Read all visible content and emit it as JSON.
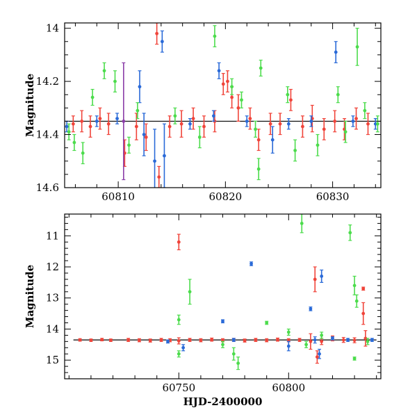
{
  "chart_data": [
    {
      "type": "scatter",
      "title": "",
      "xlabel": "",
      "ylabel": "Magnitude",
      "xlim": [
        60805,
        60834.5
      ],
      "ylim": [
        14.6,
        13.98
      ],
      "y_inverted": true,
      "xticks": [
        60810,
        60820,
        60830
      ],
      "yticks": [
        14,
        14.2,
        14.4,
        14.6
      ],
      "grid": false,
      "model_line": {
        "x": [
          60805,
          60834.5
        ],
        "y": [
          14.35,
          14.35
        ],
        "color": "#000000"
      },
      "series": [
        {
          "color": "#f0443a",
          "points": [
            {
              "x": 60805.8,
              "y": 14.36,
              "err": 0.03
            },
            {
              "x": 60806.6,
              "y": 14.35,
              "err": 0.04
            },
            {
              "x": 60807.4,
              "y": 14.37,
              "err": 0.04
            },
            {
              "x": 60808.3,
              "y": 14.34,
              "err": 0.04
            },
            {
              "x": 60809.1,
              "y": 14.36,
              "err": 0.04
            },
            {
              "x": 60810.6,
              "y": 14.47,
              "err": 0.05
            },
            {
              "x": 60811.7,
              "y": 14.37,
              "err": 0.05
            },
            {
              "x": 60812.6,
              "y": 14.41,
              "err": 0.05
            },
            {
              "x": 60813.6,
              "y": 14.02,
              "err": 0.04
            },
            {
              "x": 60813.8,
              "y": 14.56,
              "err": 0.04
            },
            {
              "x": 60814.8,
              "y": 14.37,
              "err": 0.04
            },
            {
              "x": 60815.9,
              "y": 14.36,
              "err": 0.05
            },
            {
              "x": 60817.0,
              "y": 14.34,
              "err": 0.04
            },
            {
              "x": 60818.0,
              "y": 14.37,
              "err": 0.04
            },
            {
              "x": 60819.0,
              "y": 14.35,
              "err": 0.04
            },
            {
              "x": 60819.8,
              "y": 14.21,
              "err": 0.04
            },
            {
              "x": 60820.2,
              "y": 14.2,
              "err": 0.04
            },
            {
              "x": 60820.6,
              "y": 14.26,
              "err": 0.04
            },
            {
              "x": 60821.2,
              "y": 14.3,
              "err": 0.05
            },
            {
              "x": 60822.3,
              "y": 14.34,
              "err": 0.04
            },
            {
              "x": 60823.1,
              "y": 14.42,
              "err": 0.04
            },
            {
              "x": 60824.2,
              "y": 14.36,
              "err": 0.04
            },
            {
              "x": 60825.1,
              "y": 14.36,
              "err": 0.04
            },
            {
              "x": 60826.1,
              "y": 14.27,
              "err": 0.04
            },
            {
              "x": 60827.2,
              "y": 14.37,
              "err": 0.04
            },
            {
              "x": 60828.1,
              "y": 14.34,
              "err": 0.05
            },
            {
              "x": 60829.2,
              "y": 14.38,
              "err": 0.04
            },
            {
              "x": 60830.2,
              "y": 14.35,
              "err": 0.04
            },
            {
              "x": 60831.1,
              "y": 14.38,
              "err": 0.04
            },
            {
              "x": 60832.2,
              "y": 14.34,
              "err": 0.04
            },
            {
              "x": 60833.3,
              "y": 14.36,
              "err": 0.04
            }
          ]
        },
        {
          "color": "#2a6ad8",
          "points": [
            {
              "x": 60805.2,
              "y": 14.37,
              "err": 0.02
            },
            {
              "x": 60808.0,
              "y": 14.35,
              "err": 0.02
            },
            {
              "x": 60809.9,
              "y": 14.34,
              "err": 0.02
            },
            {
              "x": 60812.0,
              "y": 14.22,
              "err": 0.06
            },
            {
              "x": 60812.4,
              "y": 14.4,
              "err": 0.08
            },
            {
              "x": 60813.4,
              "y": 14.5,
              "err": 0.12
            },
            {
              "x": 60814.1,
              "y": 14.05,
              "err": 0.04
            },
            {
              "x": 60814.3,
              "y": 14.48,
              "err": 0.12
            },
            {
              "x": 60816.7,
              "y": 14.36,
              "err": 0.02
            },
            {
              "x": 60818.9,
              "y": 14.33,
              "err": 0.02
            },
            {
              "x": 60819.4,
              "y": 14.16,
              "err": 0.03
            },
            {
              "x": 60822.0,
              "y": 14.35,
              "err": 0.02
            },
            {
              "x": 60824.4,
              "y": 14.42,
              "err": 0.05
            },
            {
              "x": 60825.9,
              "y": 14.36,
              "err": 0.02
            },
            {
              "x": 60828.0,
              "y": 14.35,
              "err": 0.02
            },
            {
              "x": 60830.3,
              "y": 14.09,
              "err": 0.04
            },
            {
              "x": 60831.9,
              "y": 14.35,
              "err": 0.02
            },
            {
              "x": 60834.0,
              "y": 14.36,
              "err": 0.02
            }
          ]
        },
        {
          "color": "#4cdc4c",
          "points": [
            {
              "x": 60805.4,
              "y": 14.39,
              "err": 0.03
            },
            {
              "x": 60805.9,
              "y": 14.43,
              "err": 0.03
            },
            {
              "x": 60806.7,
              "y": 14.47,
              "err": 0.04
            },
            {
              "x": 60807.6,
              "y": 14.26,
              "err": 0.03
            },
            {
              "x": 60808.7,
              "y": 14.16,
              "err": 0.03
            },
            {
              "x": 60809.7,
              "y": 14.2,
              "err": 0.04
            },
            {
              "x": 60811.0,
              "y": 14.44,
              "err": 0.03
            },
            {
              "x": 60811.8,
              "y": 14.31,
              "err": 0.03
            },
            {
              "x": 60815.3,
              "y": 14.33,
              "err": 0.03
            },
            {
              "x": 60817.6,
              "y": 14.41,
              "err": 0.04
            },
            {
              "x": 60819.0,
              "y": 14.03,
              "err": 0.04
            },
            {
              "x": 60820.6,
              "y": 14.22,
              "err": 0.03
            },
            {
              "x": 60821.5,
              "y": 14.27,
              "err": 0.03
            },
            {
              "x": 60822.8,
              "y": 14.38,
              "err": 0.03
            },
            {
              "x": 60823.1,
              "y": 14.53,
              "err": 0.04
            },
            {
              "x": 60823.3,
              "y": 14.15,
              "err": 0.03
            },
            {
              "x": 60825.8,
              "y": 14.25,
              "err": 0.03
            },
            {
              "x": 60826.5,
              "y": 14.46,
              "err": 0.04
            },
            {
              "x": 60828.6,
              "y": 14.44,
              "err": 0.04
            },
            {
              "x": 60830.5,
              "y": 14.25,
              "err": 0.03
            },
            {
              "x": 60831.2,
              "y": 14.39,
              "err": 0.04
            },
            {
              "x": 60832.3,
              "y": 14.07,
              "err": 0.07
            },
            {
              "x": 60833.0,
              "y": 14.31,
              "err": 0.03
            },
            {
              "x": 60834.2,
              "y": 14.36,
              "err": 0.03
            }
          ]
        },
        {
          "color": "#8a3da8",
          "points": [
            {
              "x": 60810.5,
              "y": 14.35,
              "err": 0.22
            }
          ]
        }
      ]
    },
    {
      "type": "scatter",
      "title": "",
      "xlabel": "HJD-2400000",
      "ylabel": "Magnitude",
      "xlim": [
        60698,
        60842
      ],
      "ylim": [
        15.6,
        10.3
      ],
      "y_inverted": true,
      "xticks": [
        60750,
        60800
      ],
      "yticks": [
        11,
        12,
        13,
        14,
        15
      ],
      "grid": false,
      "model_line": {
        "x": [
          60702,
          60840
        ],
        "y": [
          14.35,
          14.35
        ],
        "color": "#000000"
      },
      "series": [
        {
          "color": "#f0443a",
          "points": [
            {
              "x": 60705,
              "y": 14.35,
              "err": 0.04
            },
            {
              "x": 60710,
              "y": 14.36,
              "err": 0.04
            },
            {
              "x": 60715,
              "y": 14.34,
              "err": 0.04
            },
            {
              "x": 60719,
              "y": 14.36,
              "err": 0.04
            },
            {
              "x": 60727,
              "y": 14.35,
              "err": 0.05
            },
            {
              "x": 60732,
              "y": 14.36,
              "err": 0.05
            },
            {
              "x": 60737,
              "y": 14.37,
              "err": 0.05
            },
            {
              "x": 60742,
              "y": 14.35,
              "err": 0.05
            },
            {
              "x": 60746,
              "y": 14.36,
              "err": 0.05
            },
            {
              "x": 60750,
              "y": 11.2,
              "err": 0.25
            },
            {
              "x": 60750,
              "y": 14.38,
              "err": 0.1
            },
            {
              "x": 60755,
              "y": 14.35,
              "err": 0.05
            },
            {
              "x": 60760,
              "y": 14.36,
              "err": 0.05
            },
            {
              "x": 60765,
              "y": 14.34,
              "err": 0.05
            },
            {
              "x": 60770,
              "y": 14.36,
              "err": 0.05
            },
            {
              "x": 60775,
              "y": 14.35,
              "err": 0.05
            },
            {
              "x": 60780,
              "y": 14.37,
              "err": 0.05
            },
            {
              "x": 60785,
              "y": 14.35,
              "err": 0.05
            },
            {
              "x": 60790,
              "y": 14.36,
              "err": 0.05
            },
            {
              "x": 60795,
              "y": 14.34,
              "err": 0.05
            },
            {
              "x": 60800,
              "y": 14.36,
              "err": 0.05
            },
            {
              "x": 60805,
              "y": 14.35,
              "err": 0.05
            },
            {
              "x": 60810,
              "y": 14.4,
              "err": 0.25
            },
            {
              "x": 60812,
              "y": 12.4,
              "err": 0.4
            },
            {
              "x": 60813,
              "y": 14.9,
              "err": 0.2
            },
            {
              "x": 60815,
              "y": 14.4,
              "err": 0.1
            },
            {
              "x": 60820,
              "y": 14.3,
              "err": 0.08
            },
            {
              "x": 60825,
              "y": 14.35,
              "err": 0.08
            },
            {
              "x": 60830,
              "y": 14.36,
              "err": 0.08
            },
            {
              "x": 60834,
              "y": 12.7,
              "err": 0.05
            },
            {
              "x": 60834,
              "y": 13.5,
              "err": 0.35
            },
            {
              "x": 60835,
              "y": 14.3,
              "err": 0.25
            }
          ]
        },
        {
          "color": "#2a6ad8",
          "points": [
            {
              "x": 60745,
              "y": 14.4,
              "err": 0.05
            },
            {
              "x": 60752,
              "y": 14.6,
              "err": 0.1
            },
            {
              "x": 60770,
              "y": 13.75,
              "err": 0.05
            },
            {
              "x": 60775,
              "y": 14.35,
              "err": 0.05
            },
            {
              "x": 60783,
              "y": 11.9,
              "err": 0.06
            },
            {
              "x": 60800,
              "y": 14.55,
              "err": 0.15
            },
            {
              "x": 60810,
              "y": 13.35,
              "err": 0.06
            },
            {
              "x": 60812,
              "y": 14.35,
              "err": 0.1
            },
            {
              "x": 60814,
              "y": 14.8,
              "err": 0.15
            },
            {
              "x": 60815,
              "y": 12.3,
              "err": 0.2
            },
            {
              "x": 60820,
              "y": 14.3,
              "err": 0.05
            },
            {
              "x": 60827,
              "y": 14.35,
              "err": 0.05
            },
            {
              "x": 60838,
              "y": 14.35,
              "err": 0.05
            }
          ]
        },
        {
          "color": "#4cdc4c",
          "points": [
            {
              "x": 60750,
              "y": 14.8,
              "err": 0.1
            },
            {
              "x": 60750,
              "y": 13.7,
              "err": 0.15
            },
            {
              "x": 60755,
              "y": 12.8,
              "err": 0.4
            },
            {
              "x": 60770,
              "y": 14.5,
              "err": 0.1
            },
            {
              "x": 60775,
              "y": 14.8,
              "err": 0.2
            },
            {
              "x": 60777,
              "y": 15.1,
              "err": 0.2
            },
            {
              "x": 60790,
              "y": 13.8,
              "err": 0.05
            },
            {
              "x": 60800,
              "y": 14.1,
              "err": 0.1
            },
            {
              "x": 60806,
              "y": 10.6,
              "err": 0.3
            },
            {
              "x": 60808,
              "y": 14.5,
              "err": 0.1
            },
            {
              "x": 60815,
              "y": 14.2,
              "err": 0.1
            },
            {
              "x": 60828,
              "y": 10.9,
              "err": 0.25
            },
            {
              "x": 60830,
              "y": 12.6,
              "err": 0.3
            },
            {
              "x": 60831,
              "y": 13.1,
              "err": 0.2
            },
            {
              "x": 60830,
              "y": 14.95,
              "err": 0.05
            },
            {
              "x": 60836,
              "y": 14.4,
              "err": 0.1
            }
          ]
        }
      ]
    }
  ]
}
